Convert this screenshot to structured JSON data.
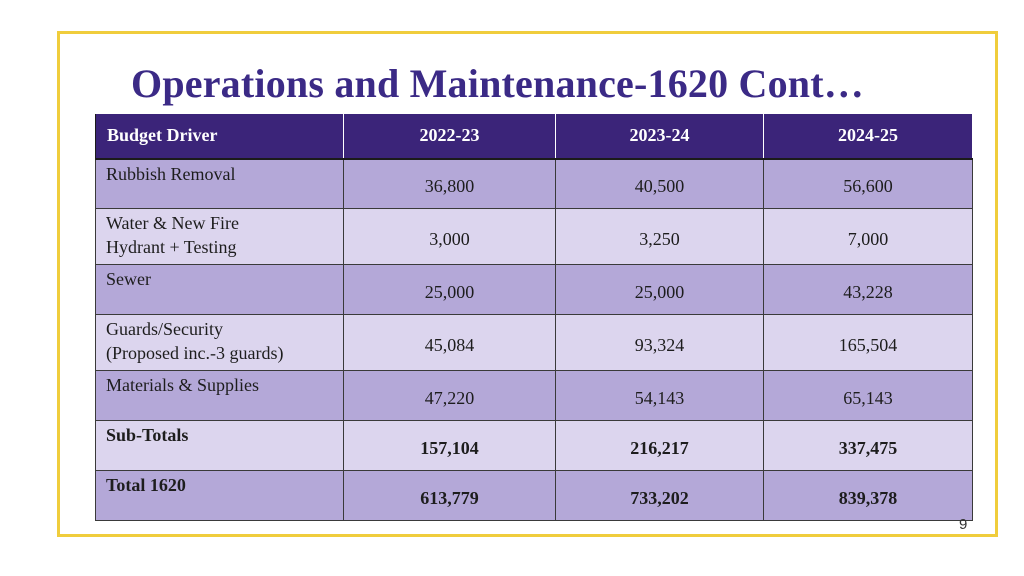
{
  "title": "Operations and Maintenance-1620 Cont…",
  "table": {
    "headers": [
      "Budget Driver",
      "2022-23",
      "2023-24",
      "2024-25"
    ],
    "rows": [
      {
        "label_lines": [
          "Rubbish Removal"
        ],
        "values": [
          "36,800",
          "40,500",
          "56,600"
        ]
      },
      {
        "label_lines": [
          "Water & New Fire",
          "Hydrant + Testing"
        ],
        "values": [
          "3,000",
          "3,250",
          "7,000"
        ]
      },
      {
        "label_lines": [
          "Sewer"
        ],
        "values": [
          "25,000",
          "25,000",
          "43,228"
        ]
      },
      {
        "label_lines": [
          "Guards/Security",
          "(Proposed inc.-3 guards)"
        ],
        "values": [
          "45,084",
          "93,324",
          "165,504"
        ]
      },
      {
        "label_lines": [
          "Materials & Supplies"
        ],
        "values": [
          "47,220",
          "54,143",
          "65,143"
        ]
      },
      {
        "label_lines": [
          "Sub-Totals"
        ],
        "values": [
          "157,104",
          "216,217",
          "337,475"
        ]
      },
      {
        "label_lines": [
          "Total 1620"
        ],
        "values": [
          "613,779",
          "733,202",
          "839,378"
        ]
      }
    ]
  },
  "page_number": "9",
  "colors": {
    "header_bg": "#3b2479",
    "row_dark": "#b4a8d8",
    "row_light": "#dcd5ee",
    "title": "#3b2a86",
    "frame": "#f0cd3c"
  }
}
